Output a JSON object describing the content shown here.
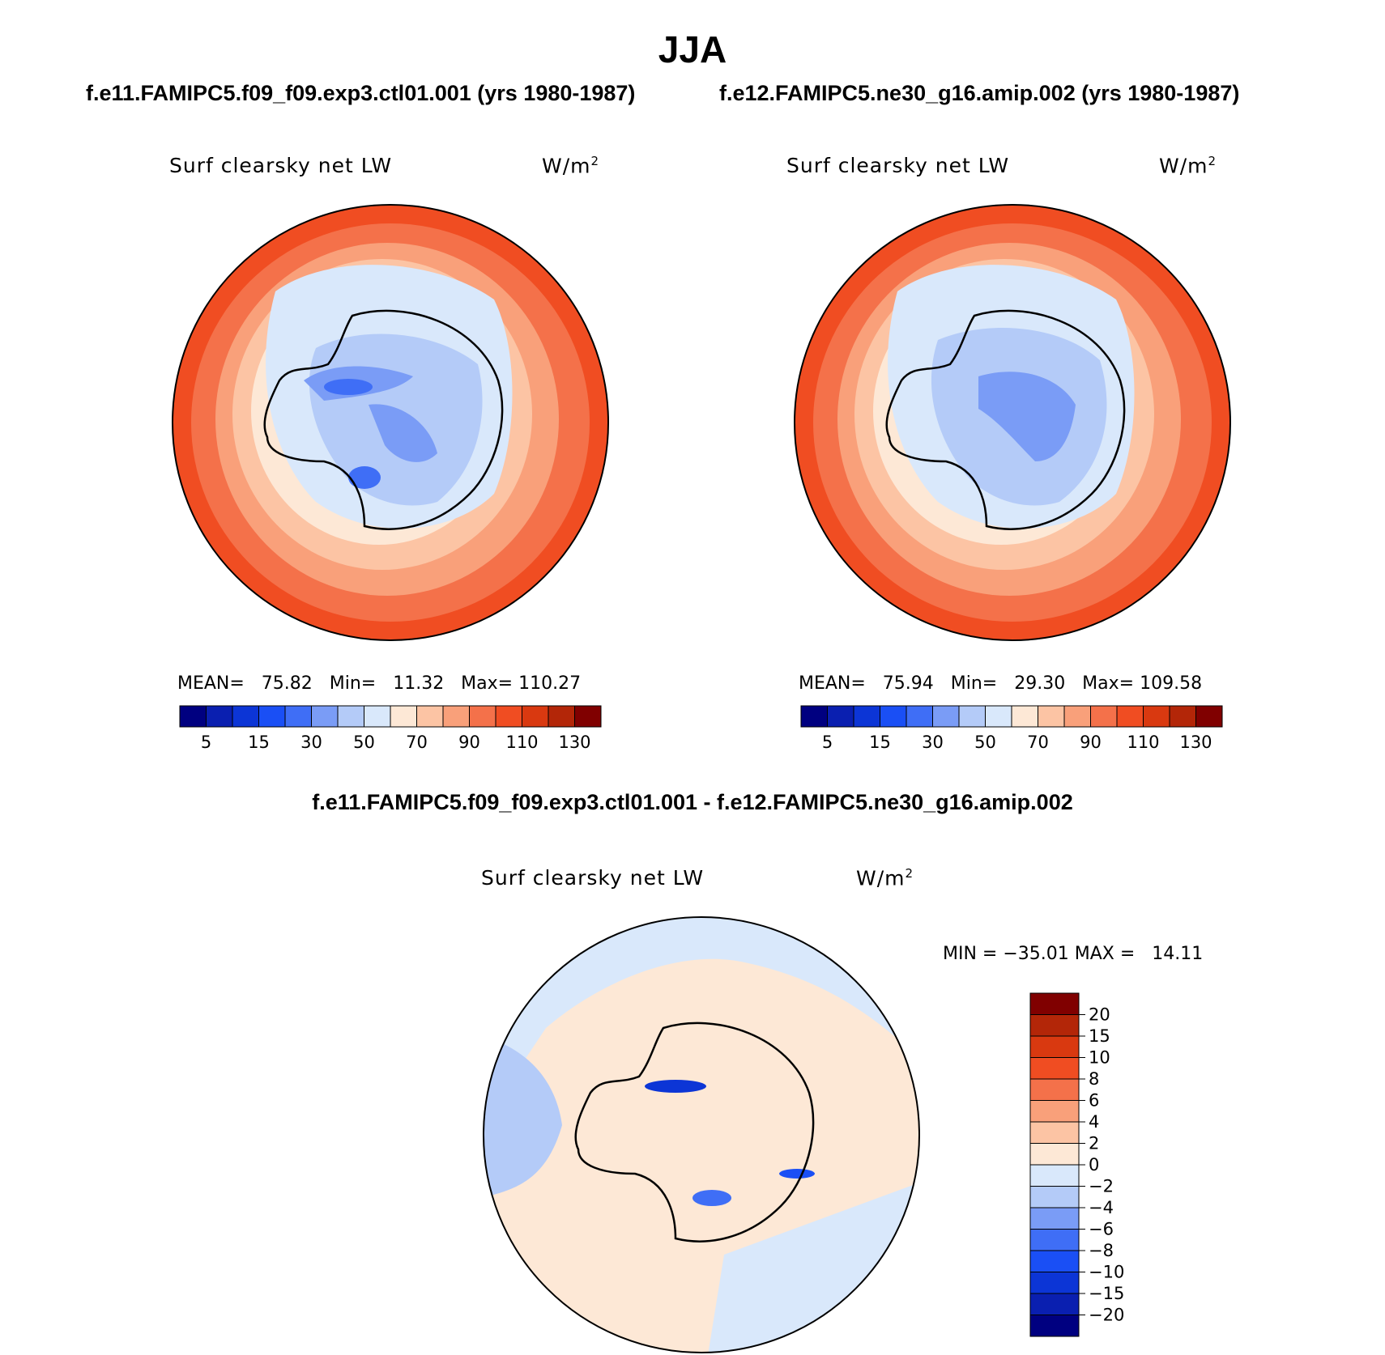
{
  "figure": {
    "title": "JJA",
    "diff_title": "f.e11.FAMIPC5.f09_f09.exp3.ctl01.001 - f.e12.FAMIPC5.ne30_g16.amip.002"
  },
  "panels": [
    {
      "case_title": "f.e11.FAMIPC5.f09_f09.exp3.ctl01.001 (yrs 1980-1987)",
      "variable": "Surf clearsky net LW",
      "units_base": "W/m",
      "units_exp": "2",
      "stats": "MEAN=   75.82   Min=   11.32   Max= 110.27"
    },
    {
      "case_title": "f.e12.FAMIPC5.ne30_g16.amip.002 (yrs 1980-1987)",
      "variable": "Surf clearsky net LW",
      "units_base": "W/m",
      "units_exp": "2",
      "stats": "MEAN=   75.94   Min=   29.30   Max= 109.58"
    }
  ],
  "diff_panel": {
    "variable": "Surf clearsky net LW",
    "units_base": "W/m",
    "units_exp": "2",
    "stats": "MIN = −35.01 MAX =   14.11"
  },
  "colorbar_abs": {
    "labels": [
      "5",
      "15",
      "30",
      "50",
      "70",
      "90",
      "110",
      "130"
    ],
    "colors": [
      "#000080",
      "#0a1fb0",
      "#0c35d6",
      "#1a4ff5",
      "#3f6ef6",
      "#7a9cf6",
      "#b4cbf8",
      "#d9e8fb",
      "#fde8d6",
      "#fcc4a4",
      "#f9a07a",
      "#f4714a",
      "#f04d22",
      "#d93910",
      "#b32608",
      "#800000"
    ]
  },
  "colorbar_diff": {
    "labels": [
      "20",
      "15",
      "10",
      "8",
      "6",
      "4",
      "2",
      "0",
      "−2",
      "−4",
      "−6",
      "−8",
      "−10",
      "−15",
      "−20"
    ],
    "colors": [
      "#800000",
      "#b32608",
      "#d93910",
      "#f04d22",
      "#f4714a",
      "#f9a07a",
      "#fcc4a4",
      "#fde8d6",
      "#d9e8fb",
      "#b4cbf8",
      "#7a9cf6",
      "#3f6ef6",
      "#1a4ff5",
      "#0c35d6",
      "#0a1fb0",
      "#000080"
    ]
  }
}
